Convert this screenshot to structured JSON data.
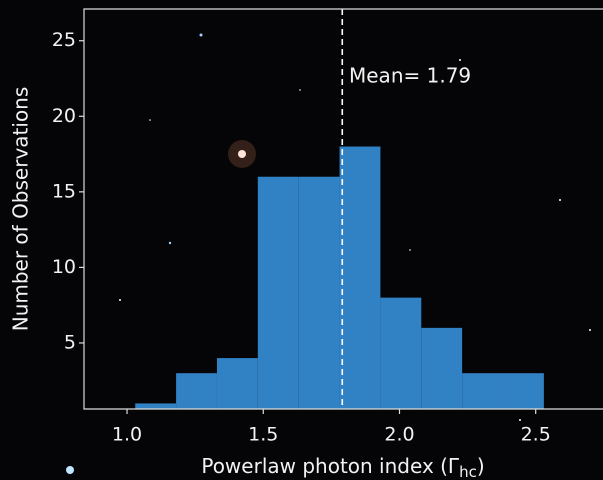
{
  "chart_data": {
    "type": "histogram",
    "xlabel": [
      "Powerlaw photon index (Γ",
      "hc",
      ")"
    ],
    "ylabel": "Number of Observations",
    "bins": [
      1.03,
      1.18,
      1.33,
      1.48,
      1.63,
      1.78,
      1.93,
      2.08,
      2.23,
      2.38,
      2.53
    ],
    "counts": [
      1,
      3,
      4,
      16,
      16,
      18,
      8,
      6,
      3,
      3
    ],
    "color": "#3182c4",
    "mean": 1.79,
    "mean_label": "Mean= 1.79",
    "xlim": [
      0.842,
      2.747
    ],
    "ylim": [
      0.63,
      27.1
    ],
    "xticks": [
      {
        "value": 1.0,
        "label": "1.0"
      },
      {
        "value": 1.5,
        "label": "1.5"
      },
      {
        "value": 2.0,
        "label": "2.0"
      },
      {
        "value": 2.5,
        "label": "2.5"
      }
    ],
    "yticks": [
      5,
      10,
      15,
      20,
      25
    ]
  }
}
